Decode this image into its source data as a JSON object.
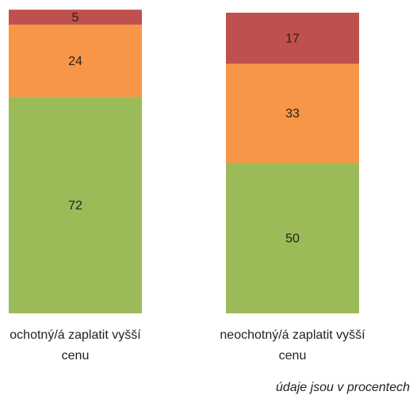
{
  "chart_data": {
    "type": "stacked_bar",
    "categories": [
      "ochotný/á zaplatit vyšší cenu",
      "neochotný/á zaplatit vyšší cenu"
    ],
    "series": [
      {
        "color": "#9bbb59",
        "values": [
          72,
          50
        ]
      },
      {
        "color": "#f79646",
        "values": [
          24,
          33
        ]
      },
      {
        "color": "#c0504d",
        "values": [
          5,
          17
        ]
      }
    ],
    "note": "údaje jsou v procentech"
  }
}
